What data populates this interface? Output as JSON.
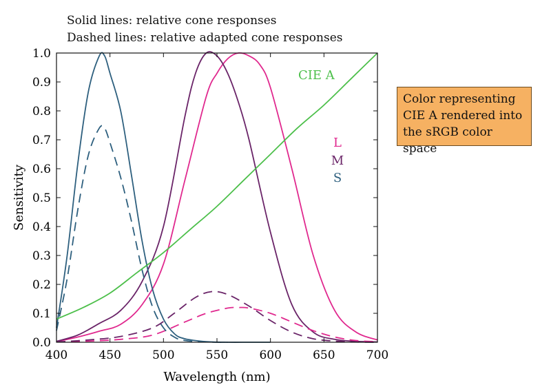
{
  "captions": {
    "line1": "Solid lines: relative cone responses",
    "line2": "Dashed lines: relative adapted cone responses"
  },
  "swatch": {
    "text": "Color representing\nCIE A rendered into\nthe sRGB color space",
    "color": "#f6b162"
  },
  "chart_data": {
    "type": "line",
    "xlabel": "Wavelength (nm)",
    "ylabel": "Sensitivity",
    "xlim": [
      400,
      700
    ],
    "ylim": [
      0,
      1
    ],
    "xticks": [
      400,
      450,
      500,
      550,
      600,
      650,
      700
    ],
    "yticks": [
      "0.0",
      "0.1",
      "0.2",
      "0.3",
      "0.4",
      "0.5",
      "0.6",
      "0.7",
      "0.8",
      "0.9",
      "1.0"
    ],
    "legend": [
      "L",
      "M",
      "S"
    ],
    "annotation": "CIE A",
    "series": [
      {
        "name": "L",
        "style": "solid",
        "color": "#e0288e",
        "x": [
          400,
          420,
          440,
          460,
          480,
          500,
          520,
          540,
          550,
          560,
          570,
          580,
          590,
          600,
          620,
          640,
          660,
          680,
          700
        ],
        "y": [
          0.002,
          0.018,
          0.038,
          0.062,
          0.13,
          0.27,
          0.56,
          0.85,
          0.93,
          0.98,
          1.0,
          0.99,
          0.96,
          0.88,
          0.6,
          0.3,
          0.11,
          0.035,
          0.008
        ]
      },
      {
        "name": "M",
        "style": "solid",
        "color": "#6a2468",
        "x": [
          400,
          420,
          440,
          460,
          480,
          500,
          520,
          530,
          540,
          550,
          560,
          570,
          580,
          600,
          620,
          640,
          660,
          680,
          700
        ],
        "y": [
          0.003,
          0.025,
          0.065,
          0.11,
          0.21,
          0.4,
          0.78,
          0.93,
          1.0,
          0.99,
          0.93,
          0.83,
          0.7,
          0.38,
          0.13,
          0.035,
          0.01,
          0.003,
          0.001
        ]
      },
      {
        "name": "S",
        "style": "solid",
        "color": "#2d5f7e",
        "x": [
          400,
          410,
          420,
          430,
          440,
          445,
          450,
          460,
          470,
          480,
          490,
          500,
          510,
          520,
          540,
          560,
          580,
          600
        ],
        "y": [
          0.05,
          0.3,
          0.62,
          0.87,
          0.99,
          0.99,
          0.93,
          0.8,
          0.58,
          0.35,
          0.18,
          0.08,
          0.03,
          0.012,
          0.002,
          0.0,
          0.0,
          0.0
        ]
      },
      {
        "name": "L",
        "style": "dashed",
        "color": "#e0288e",
        "x": [
          400,
          430,
          460,
          490,
          520,
          540,
          560,
          570,
          580,
          600,
          620,
          640,
          660,
          680,
          700
        ],
        "y": [
          0.001,
          0.004,
          0.01,
          0.025,
          0.07,
          0.1,
          0.118,
          0.12,
          0.118,
          0.1,
          0.07,
          0.04,
          0.018,
          0.006,
          0.002
        ]
      },
      {
        "name": "M",
        "style": "dashed",
        "color": "#6a2468",
        "x": [
          400,
          430,
          460,
          490,
          510,
          530,
          545,
          560,
          580,
          600,
          620,
          640,
          660,
          680,
          700
        ],
        "y": [
          0.001,
          0.008,
          0.02,
          0.05,
          0.1,
          0.155,
          0.175,
          0.165,
          0.125,
          0.075,
          0.035,
          0.012,
          0.004,
          0.001,
          0.0
        ]
      },
      {
        "name": "S",
        "style": "dashed",
        "color": "#2d5f7e",
        "x": [
          400,
          410,
          420,
          430,
          440,
          445,
          450,
          460,
          470,
          480,
          490,
          500,
          510,
          520,
          540,
          560
        ],
        "y": [
          0.04,
          0.22,
          0.46,
          0.65,
          0.74,
          0.74,
          0.69,
          0.57,
          0.42,
          0.25,
          0.12,
          0.05,
          0.018,
          0.006,
          0.001,
          0.0
        ]
      },
      {
        "name": "CIE A",
        "style": "solid",
        "color": "#4cbf4a",
        "x": [
          400,
          425,
          450,
          475,
          500,
          525,
          550,
          575,
          600,
          625,
          650,
          675,
          700
        ],
        "y": [
          0.08,
          0.12,
          0.17,
          0.24,
          0.31,
          0.39,
          0.47,
          0.56,
          0.65,
          0.74,
          0.82,
          0.91,
          1.0
        ]
      }
    ]
  }
}
